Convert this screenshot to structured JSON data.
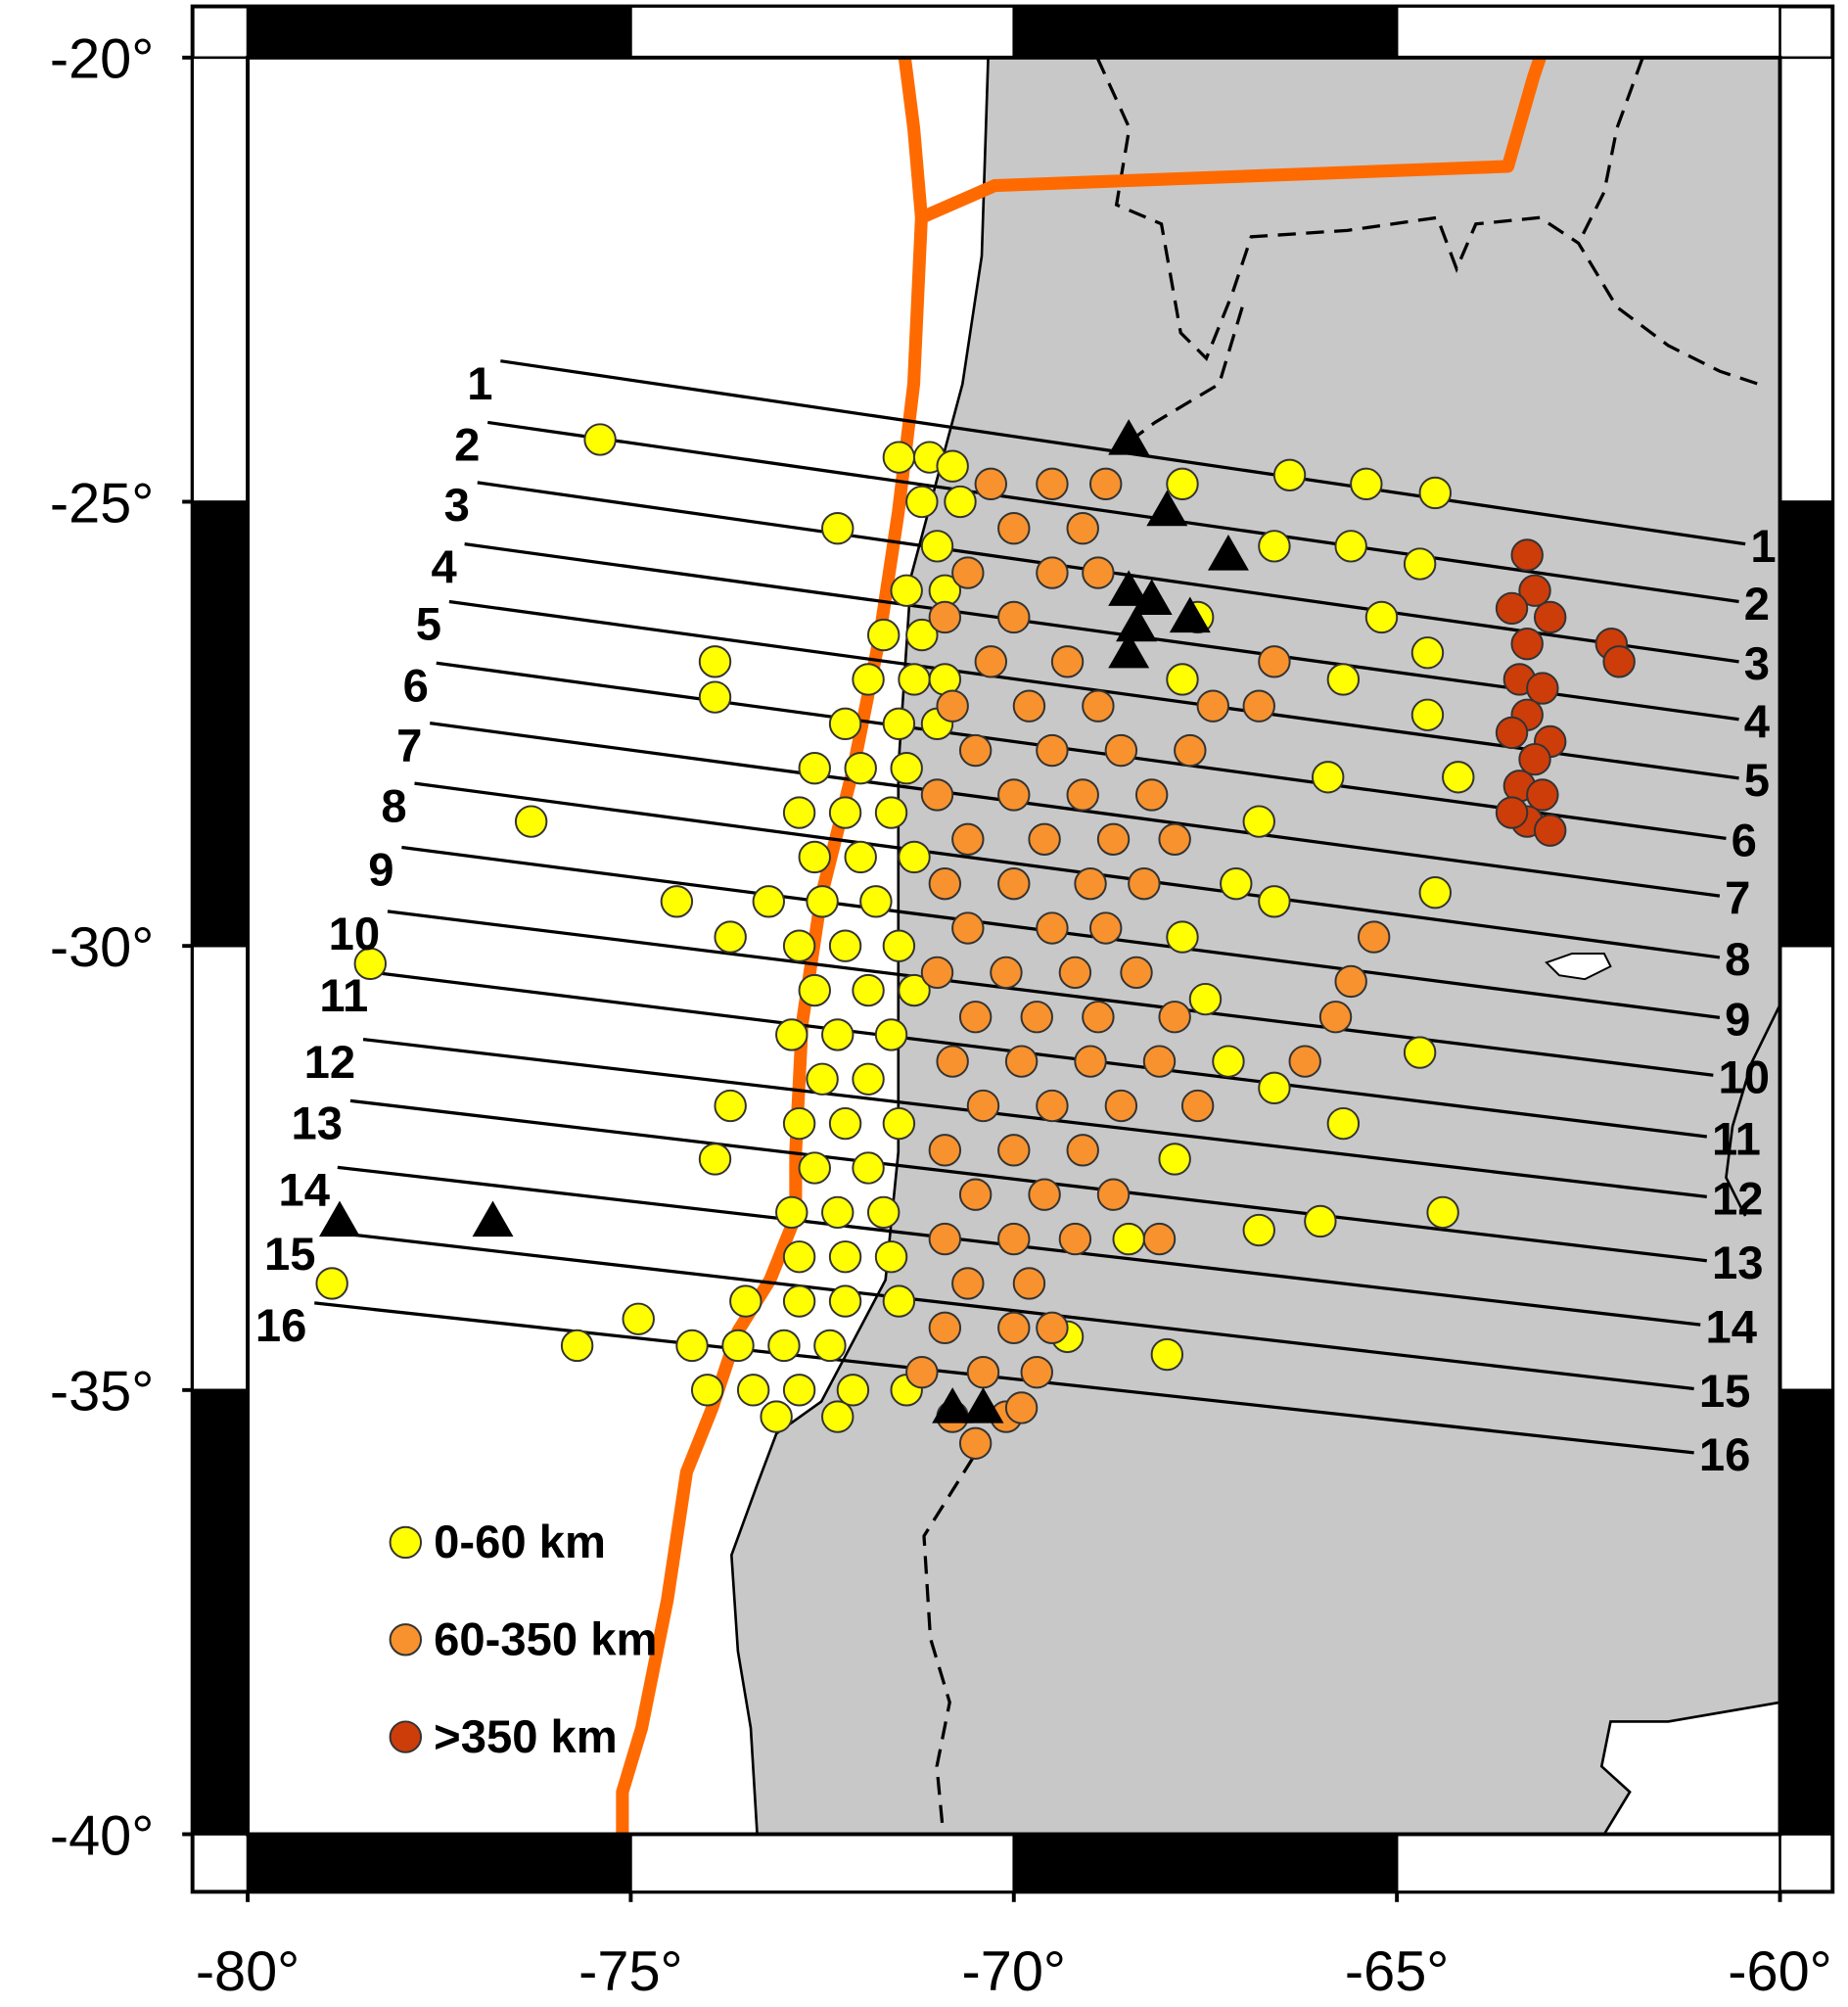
{
  "chart_data": {
    "type": "scatter",
    "xlim": [
      -80,
      -60
    ],
    "ylim": [
      -40,
      -20
    ],
    "xticks": [
      {
        "value": -80,
        "label": "-80°"
      },
      {
        "value": -75,
        "label": "-75°"
      },
      {
        "value": -70,
        "label": "-70°"
      },
      {
        "value": -65,
        "label": "-65°"
      },
      {
        "value": -60,
        "label": "-60°"
      }
    ],
    "yticks": [
      {
        "value": -40,
        "label": "-40°"
      },
      {
        "value": -35,
        "label": "-35°"
      },
      {
        "value": -30,
        "label": "-30°"
      },
      {
        "value": -25,
        "label": "-25°"
      },
      {
        "value": -20,
        "label": "-20°"
      }
    ],
    "profile_labels": [
      "1",
      "2",
      "3",
      "4",
      "5",
      "6",
      "7",
      "8",
      "9",
      "10",
      "11",
      "12",
      "13",
      "14",
      "15",
      "16"
    ],
    "series": [
      {
        "name": "0-60 km",
        "color": "#ffff00",
        "marker": "circle",
        "x": [
          -75.4,
          -73.9,
          -73.9,
          -76.3,
          -78.4,
          -78.9,
          -75.7,
          -74.9,
          -74.4,
          -73.7,
          -73.7,
          -73.9,
          -68.0,
          -66.6,
          -65.7,
          -64.4,
          -66.0,
          -64.7,
          -64.5,
          -64.2,
          -66.6,
          -66.8,
          -66.4,
          -65.4,
          -64.5,
          -64.7,
          -64.6,
          -64.6,
          -65.6,
          -66.6,
          -65.7,
          -65.9,
          -65.2,
          -71.5,
          -71.1,
          -70.8,
          -71.2,
          -70.7,
          -72.3,
          -71.0,
          -71.4,
          -70.9,
          -71.7,
          -71.2,
          -71.9,
          -71.3,
          -70.9,
          -72.2,
          -71.5,
          -71.0,
          -72.6,
          -72.0,
          -71.4,
          -72.8,
          -72.2,
          -71.6,
          -72.6,
          -72.0,
          -71.3,
          -73.2,
          -72.5,
          -71.8,
          -72.8,
          -72.2,
          -71.5,
          -72.6,
          -71.9,
          -71.3,
          -72.9,
          -72.3,
          -71.6,
          -72.5,
          -71.9,
          -72.8,
          -72.2,
          -71.5,
          -72.6,
          -71.9,
          -72.9,
          -72.3,
          -71.7,
          -72.8,
          -72.2,
          -71.6,
          -73.5,
          -72.8,
          -72.2,
          -71.5,
          -74.2,
          -73.6,
          -73.0,
          -72.4,
          -74.0,
          -73.4,
          -72.8,
          -72.1,
          -71.4,
          -73.1,
          -72.3,
          -66.8,
          -67.8,
          -67.1,
          -67.5,
          -67.2,
          -67.9,
          -68.5,
          -69.3,
          -67.8,
          -67.6,
          -67.8
        ],
        "values": [
          -24.3,
          -26.8,
          -27.2,
          -28.6,
          -30.2,
          -33.8,
          -34.5,
          -34.2,
          -29.5,
          -29.9,
          -31.8,
          -32.4,
          -34.6,
          -31.6,
          -32.0,
          -33.0,
          -33.1,
          -31.2,
          -29.4,
          -28.1,
          -29.5,
          -33.2,
          -24.7,
          -24.8,
          -24.9,
          -25.7,
          -26.7,
          -27.4,
          -25.5,
          -25.5,
          -27.0,
          -28.1,
          -26.3,
          -24.5,
          -24.5,
          -24.6,
          -25.0,
          -25.0,
          -25.3,
          -25.5,
          -26.0,
          -26.0,
          -26.5,
          -26.5,
          -27.0,
          -27.0,
          -27.0,
          -27.5,
          -27.5,
          -27.5,
          -28.0,
          -28.0,
          -28.0,
          -28.5,
          -28.5,
          -28.5,
          -29.0,
          -29.0,
          -29.0,
          -29.5,
          -29.5,
          -29.5,
          -30.0,
          -30.0,
          -30.0,
          -30.5,
          -30.5,
          -30.5,
          -31.0,
          -31.0,
          -31.0,
          -31.5,
          -31.5,
          -32.0,
          -32.0,
          -32.0,
          -32.5,
          -32.5,
          -33.0,
          -33.0,
          -33.0,
          -33.5,
          -33.5,
          -33.5,
          -34.0,
          -34.0,
          -34.0,
          -34.0,
          -34.5,
          -34.5,
          -34.5,
          -34.5,
          -35.0,
          -35.0,
          -35.0,
          -35.0,
          -35.0,
          -35.3,
          -35.3,
          -28.6,
          -29.9,
          -29.3,
          -30.6,
          -31.3,
          -32.4,
          -33.3,
          -34.4,
          -24.8,
          -26.3,
          -27.0
        ]
      },
      {
        "name": "60-350 km",
        "color": "#f7922e",
        "marker": "circle",
        "x": [
          -70.3,
          -69.5,
          -68.8,
          -70.0,
          -69.1,
          -70.6,
          -69.5,
          -68.9,
          -70.9,
          -70.0,
          -70.3,
          -69.3,
          -66.6,
          -70.8,
          -69.8,
          -68.9,
          -67.4,
          -66.8,
          -70.5,
          -69.5,
          -68.6,
          -67.7,
          -71.0,
          -70.0,
          -69.1,
          -68.2,
          -70.6,
          -69.6,
          -68.7,
          -67.9,
          -70.9,
          -70.0,
          -69.0,
          -68.3,
          -70.6,
          -69.5,
          -68.8,
          -71.0,
          -70.1,
          -69.2,
          -68.4,
          -70.5,
          -69.7,
          -68.9,
          -67.9,
          -65.8,
          -70.8,
          -69.9,
          -69.0,
          -68.1,
          -66.2,
          -70.4,
          -69.5,
          -68.6,
          -67.6,
          -70.9,
          -70.0,
          -69.1,
          -70.5,
          -69.6,
          -68.7,
          -70.9,
          -70.0,
          -69.2,
          -68.1,
          -70.6,
          -69.8,
          -70.9,
          -70.0,
          -69.5,
          -71.2,
          -70.4,
          -69.7,
          -70.8,
          -70.1,
          -70.5,
          -69.9,
          -65.3,
          -65.6
        ],
        "values": [
          -24.8,
          -24.8,
          -24.8,
          -25.3,
          -25.3,
          -25.8,
          -25.8,
          -25.8,
          -26.3,
          -26.3,
          -26.8,
          -26.8,
          -26.8,
          -27.3,
          -27.3,
          -27.3,
          -27.3,
          -27.3,
          -27.8,
          -27.8,
          -27.8,
          -27.8,
          -28.3,
          -28.3,
          -28.3,
          -28.3,
          -28.8,
          -28.8,
          -28.8,
          -28.8,
          -29.3,
          -29.3,
          -29.3,
          -29.3,
          -29.8,
          -29.8,
          -29.8,
          -30.3,
          -30.3,
          -30.3,
          -30.3,
          -30.8,
          -30.8,
          -30.8,
          -30.8,
          -30.8,
          -31.3,
          -31.3,
          -31.3,
          -31.3,
          -31.3,
          -31.8,
          -31.8,
          -31.8,
          -31.8,
          -32.3,
          -32.3,
          -32.3,
          -32.8,
          -32.8,
          -32.8,
          -33.3,
          -33.3,
          -33.3,
          -33.3,
          -33.8,
          -33.8,
          -34.3,
          -34.3,
          -34.3,
          -34.8,
          -34.8,
          -34.8,
          -35.3,
          -35.3,
          -35.6,
          -35.2,
          -29.9,
          -30.4
        ]
      },
      {
        "name": ">350 km",
        "color": "#cc3d0a",
        "marker": "circle",
        "x": [
          -63.3,
          -63.2,
          -63.5,
          -63.0,
          -63.3,
          -63.4,
          -63.1,
          -63.3,
          -63.5,
          -63.0,
          -63.2,
          -63.4,
          -63.1,
          -63.3,
          -63.0,
          -63.5,
          -62.2,
          -62.1
        ],
        "values": [
          -25.6,
          -26.0,
          -26.2,
          -26.3,
          -26.6,
          -27.0,
          -27.1,
          -27.4,
          -27.6,
          -27.7,
          -27.9,
          -28.2,
          -28.3,
          -28.6,
          -28.7,
          -28.5,
          -26.6,
          -26.8
        ]
      },
      {
        "color": "#000000",
        "marker": "triangle",
        "x": [
          -78.8,
          -76.8,
          -68.5,
          -68.0,
          -67.2,
          -68.5,
          -68.2,
          -68.4,
          -68.5,
          -67.7,
          -70.8,
          -70.4
        ],
        "values": [
          -33.1,
          -33.1,
          -24.3,
          -25.1,
          -25.6,
          -26.0,
          -26.1,
          -26.4,
          -26.7,
          -26.3,
          -35.2,
          -35.2
        ]
      }
    ]
  }
}
